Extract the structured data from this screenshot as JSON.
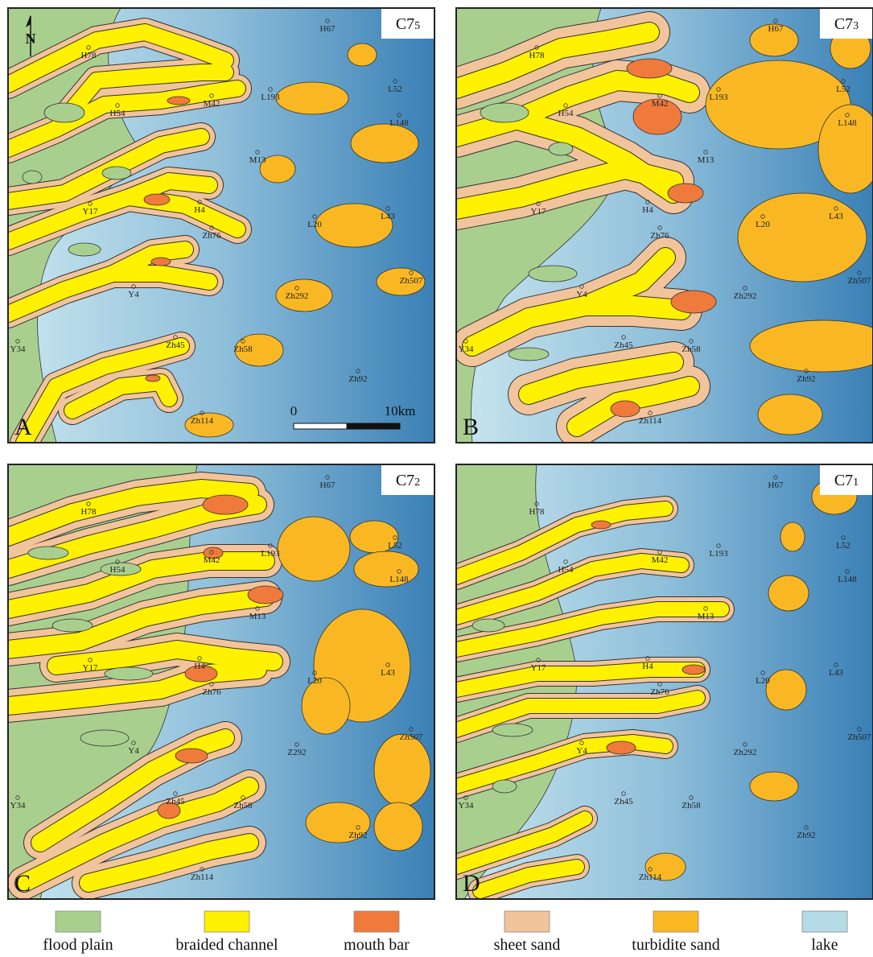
{
  "north": "N",
  "scale_bar": {
    "start": "0",
    "end": "10km"
  },
  "panels": [
    {
      "letter": "A",
      "layer": "C7",
      "sublayer": "5",
      "wells": [
        "H67",
        "H78",
        "H54",
        "M42",
        "L193",
        "L52",
        "L148",
        "M13",
        "Y17",
        "H4",
        "Zh76",
        "L20",
        "L43",
        "Y4",
        "Zh292",
        "Zh507",
        "Y34",
        "Zh45",
        "Zh58",
        "Zh92",
        "Zh114"
      ]
    },
    {
      "letter": "B",
      "layer": "C7",
      "sublayer": "3",
      "wells": [
        "H67",
        "H78",
        "H54",
        "M42",
        "L193",
        "L52",
        "L148",
        "M13",
        "Y17",
        "H4",
        "Zh76",
        "L20",
        "L43",
        "Y4",
        "Zh292",
        "Zh507",
        "Y34",
        "Zh45",
        "Zh58",
        "Zh92",
        "Zh114"
      ]
    },
    {
      "letter": "C",
      "layer": "C7",
      "sublayer": "2",
      "wells": [
        "H67",
        "H78",
        "H54",
        "M42",
        "L193",
        "L52",
        "L148",
        "M13",
        "Y17",
        "H4",
        "Zh76",
        "L20",
        "L43",
        "Y4",
        "Z292",
        "Zh507",
        "Y34",
        "Zh45",
        "Zh58",
        "Zh92",
        "Zh114"
      ]
    },
    {
      "letter": "D",
      "layer": "C7",
      "sublayer": "1",
      "wells": [
        "H67",
        "H78",
        "H54",
        "M42",
        "L193",
        "L52",
        "L148",
        "M13",
        "Y17",
        "H4",
        "Zh76",
        "L20",
        "L43",
        "Y4",
        "Zh292",
        "Zh507",
        "Y34",
        "Zh45",
        "Zh58",
        "Zh92",
        "Zh114"
      ]
    }
  ],
  "legend": [
    {
      "label": "flood plain",
      "color": "#a9cf8f"
    },
    {
      "label": "braided channel",
      "color": "#fff100"
    },
    {
      "label": "mouth bar",
      "color": "#f07a3c"
    },
    {
      "label": "sheet sand",
      "color": "#f2c49c"
    },
    {
      "label": "turbidite sand",
      "color": "#f9b823"
    },
    {
      "label": "lake",
      "color": "#b4dbe6"
    }
  ]
}
